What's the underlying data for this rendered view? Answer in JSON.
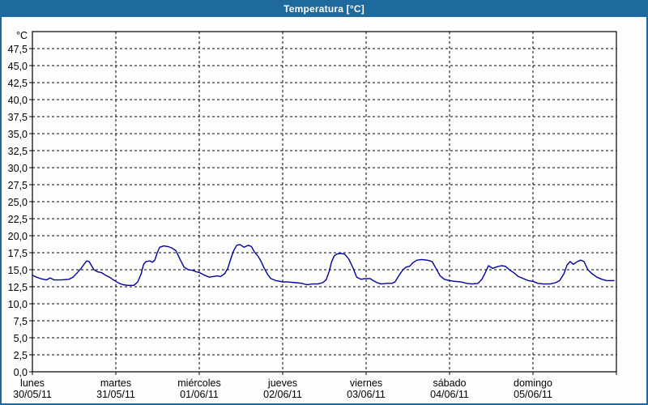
{
  "window": {
    "title": "Temperatura [°C]"
  },
  "colors": {
    "title_bar": "#1e699e",
    "title_text": "#ffffff",
    "border": "#1e699e",
    "background": "#fdfefb",
    "plot_background": "#fdfefb",
    "grid": "#000000",
    "axis_text": "#000000",
    "line": "#0000a0"
  },
  "chart_data": {
    "type": "line",
    "title": "Temperatura [°C]",
    "grid": "on",
    "legend": "none",
    "y_axis": {
      "unit_label": "°C",
      "min": 0,
      "max": 50,
      "tick_step": 2.5,
      "ticks": [
        {
          "value": 0,
          "label": "0,0"
        },
        {
          "value": 2.5,
          "label": "2,5"
        },
        {
          "value": 5,
          "label": "5,0"
        },
        {
          "value": 7.5,
          "label": "7,5"
        },
        {
          "value": 10,
          "label": "10,0"
        },
        {
          "value": 12.5,
          "label": "12,5"
        },
        {
          "value": 15,
          "label": "15,0"
        },
        {
          "value": 17.5,
          "label": "17,5"
        },
        {
          "value": 20,
          "label": "20,0"
        },
        {
          "value": 22.5,
          "label": "22,5"
        },
        {
          "value": 25,
          "label": "25,0"
        },
        {
          "value": 27.5,
          "label": "27,5"
        },
        {
          "value": 30,
          "label": "30,0"
        },
        {
          "value": 32.5,
          "label": "32,5"
        },
        {
          "value": 35,
          "label": "35,0"
        },
        {
          "value": 37.5,
          "label": "37,5"
        },
        {
          "value": 40,
          "label": "40,0"
        },
        {
          "value": 42.5,
          "label": "42,5"
        },
        {
          "value": 45,
          "label": "45,0"
        },
        {
          "value": 47.5,
          "label": "47,5"
        }
      ]
    },
    "x_axis": {
      "hours_total": 168,
      "hours_per_day": 24,
      "days": [
        {
          "name": "lunes",
          "date": "30/05/11"
        },
        {
          "name": "martes",
          "date": "31/05/11"
        },
        {
          "name": "miércoles",
          "date": "01/06/11"
        },
        {
          "name": "jueves",
          "date": "02/06/11"
        },
        {
          "name": "viernes",
          "date": "03/06/11"
        },
        {
          "name": "sábado",
          "date": "04/06/11"
        },
        {
          "name": "domingo",
          "date": "05/06/11"
        }
      ]
    },
    "series": [
      {
        "name": "Temperatura",
        "color": "#0000a0",
        "points": [
          [
            0,
            14.2
          ],
          [
            1.2,
            13.9
          ],
          [
            2.3,
            13.7
          ],
          [
            4,
            13.5
          ],
          [
            5.1,
            13.8
          ],
          [
            6.3,
            13.5
          ],
          [
            8.2,
            13.5
          ],
          [
            10.5,
            13.6
          ],
          [
            11.7,
            13.9
          ],
          [
            12.8,
            14.5
          ],
          [
            14,
            15.2
          ],
          [
            15,
            15.9
          ],
          [
            15.6,
            16.3
          ],
          [
            16.3,
            16.2
          ],
          [
            17,
            15.6
          ],
          [
            17.7,
            15.0
          ],
          [
            18.7,
            14.7
          ],
          [
            19.8,
            14.6
          ],
          [
            21,
            14.2
          ],
          [
            22.2,
            13.9
          ],
          [
            23.3,
            13.5
          ],
          [
            24,
            13.3
          ],
          [
            25,
            13.0
          ],
          [
            26.1,
            12.8
          ],
          [
            27.5,
            12.7
          ],
          [
            29.2,
            12.7
          ],
          [
            30.3,
            13.2
          ],
          [
            31.3,
            14.4
          ],
          [
            32,
            15.8
          ],
          [
            32.7,
            16.2
          ],
          [
            33.8,
            16.3
          ],
          [
            34.5,
            16.1
          ],
          [
            35.2,
            16.4
          ],
          [
            35.9,
            17.5
          ],
          [
            36.6,
            18.3
          ],
          [
            37.8,
            18.5
          ],
          [
            39,
            18.4
          ],
          [
            40.1,
            18.2
          ],
          [
            41.3,
            17.8
          ],
          [
            42.5,
            16.5
          ],
          [
            43.6,
            15.4
          ],
          [
            44.8,
            15.0
          ],
          [
            46.2,
            14.9
          ],
          [
            47.1,
            14.7
          ],
          [
            48,
            14.6
          ],
          [
            49.5,
            14.2
          ],
          [
            50.9,
            13.9
          ],
          [
            52,
            14.0
          ],
          [
            53.2,
            14.1
          ],
          [
            54.1,
            14.0
          ],
          [
            55.3,
            14.4
          ],
          [
            56.2,
            15.2
          ],
          [
            57.2,
            16.8
          ],
          [
            57.9,
            17.8
          ],
          [
            58.8,
            18.6
          ],
          [
            59.7,
            18.7
          ],
          [
            60.9,
            18.3
          ],
          [
            62.1,
            18.6
          ],
          [
            63,
            18.4
          ],
          [
            63.9,
            17.6
          ],
          [
            64.9,
            17.0
          ],
          [
            65.8,
            16.2
          ],
          [
            66.7,
            15.2
          ],
          [
            67.7,
            14.3
          ],
          [
            68.6,
            13.7
          ],
          [
            70,
            13.4
          ],
          [
            71.2,
            13.3
          ],
          [
            72,
            13.2
          ],
          [
            73.5,
            13.2
          ],
          [
            75.8,
            13.1
          ],
          [
            77.5,
            13.0
          ],
          [
            78.9,
            12.8
          ],
          [
            80.5,
            12.9
          ],
          [
            82.1,
            12.9
          ],
          [
            83.5,
            13.1
          ],
          [
            84.5,
            13.5
          ],
          [
            85.4,
            14.8
          ],
          [
            86.1,
            16.2
          ],
          [
            86.8,
            17.0
          ],
          [
            87.5,
            17.3
          ],
          [
            88.7,
            17.4
          ],
          [
            89.8,
            17.3
          ],
          [
            91,
            16.6
          ],
          [
            92.2,
            15.3
          ],
          [
            93.3,
            13.9
          ],
          [
            94.5,
            13.6
          ],
          [
            95.7,
            13.7
          ],
          [
            97.2,
            13.7
          ],
          [
            98,
            13.4
          ],
          [
            99.2,
            13.1
          ],
          [
            100.3,
            12.9
          ],
          [
            102,
            13.0
          ],
          [
            103.4,
            13.0
          ],
          [
            104.3,
            13.2
          ],
          [
            105.5,
            14.2
          ],
          [
            106.6,
            15.0
          ],
          [
            107.6,
            15.4
          ],
          [
            108.5,
            15.5
          ],
          [
            109.4,
            16.0
          ],
          [
            110.6,
            16.4
          ],
          [
            112,
            16.5
          ],
          [
            113.6,
            16.4
          ],
          [
            115,
            16.2
          ],
          [
            116.2,
            15.1
          ],
          [
            117.3,
            14.1
          ],
          [
            118.5,
            13.6
          ],
          [
            120,
            13.4
          ],
          [
            121.4,
            13.3
          ],
          [
            123.3,
            13.2
          ],
          [
            124.9,
            13.0
          ],
          [
            126.5,
            12.9
          ],
          [
            128.2,
            13.0
          ],
          [
            129.3,
            13.6
          ],
          [
            130.3,
            14.6
          ],
          [
            131.2,
            15.6
          ],
          [
            132.4,
            15.2
          ],
          [
            133.5,
            15.4
          ],
          [
            134.9,
            15.6
          ],
          [
            136.1,
            15.5
          ],
          [
            137.2,
            15.0
          ],
          [
            138.4,
            14.6
          ],
          [
            139.8,
            14.0
          ],
          [
            141.2,
            13.7
          ],
          [
            142.6,
            13.4
          ],
          [
            144,
            13.3
          ],
          [
            145.4,
            13.0
          ],
          [
            147,
            12.9
          ],
          [
            148.9,
            12.9
          ],
          [
            150.5,
            13.1
          ],
          [
            151.7,
            13.4
          ],
          [
            152.9,
            14.4
          ],
          [
            153.8,
            15.7
          ],
          [
            154.7,
            16.2
          ],
          [
            155.6,
            15.8
          ],
          [
            156.8,
            16.2
          ],
          [
            157.7,
            16.4
          ],
          [
            158.7,
            16.2
          ],
          [
            159.8,
            15.0
          ],
          [
            161,
            14.4
          ],
          [
            162.4,
            13.9
          ],
          [
            163.8,
            13.6
          ],
          [
            165.2,
            13.4
          ],
          [
            167.3,
            13.4
          ]
        ]
      }
    ]
  }
}
